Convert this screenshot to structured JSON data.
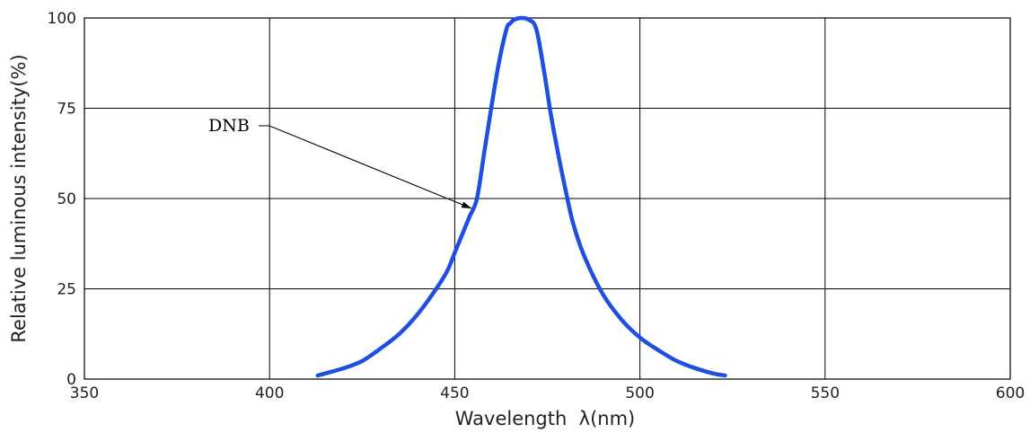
{
  "chart_data": {
    "type": "line",
    "title": "",
    "xlabel": "Wavelength  λ(nm)",
    "ylabel": "Relative luminous intensity(%)",
    "xlim": [
      350,
      600
    ],
    "ylim": [
      0,
      100
    ],
    "xticks": [
      350,
      400,
      450,
      500,
      550,
      600
    ],
    "yticks": [
      0,
      25,
      50,
      75,
      100
    ],
    "grid": true,
    "legend": "none",
    "series": [
      {
        "color": "#1f4fe0",
        "x": [
          413,
          420,
          425,
          430,
          435,
          440,
          445,
          448,
          450,
          452,
          454,
          456,
          458,
          460,
          462,
          464,
          465,
          466,
          468,
          470,
          472,
          474,
          476,
          478,
          480,
          482,
          485,
          490,
          495,
          500,
          505,
          510,
          515,
          520,
          523
        ],
        "y": [
          1,
          3,
          5,
          8.5,
          12.5,
          18,
          25,
          30,
          35,
          40,
          45,
          50,
          63,
          76,
          88,
          97,
          98.5,
          99.5,
          100,
          99.5,
          97,
          86,
          73,
          62,
          52,
          43,
          34,
          23.5,
          16.5,
          11.5,
          8,
          5,
          3,
          1.5,
          1
        ]
      }
    ],
    "annotations": [
      {
        "text": "DNB",
        "point": [
          456,
          48
        ]
      }
    ]
  }
}
